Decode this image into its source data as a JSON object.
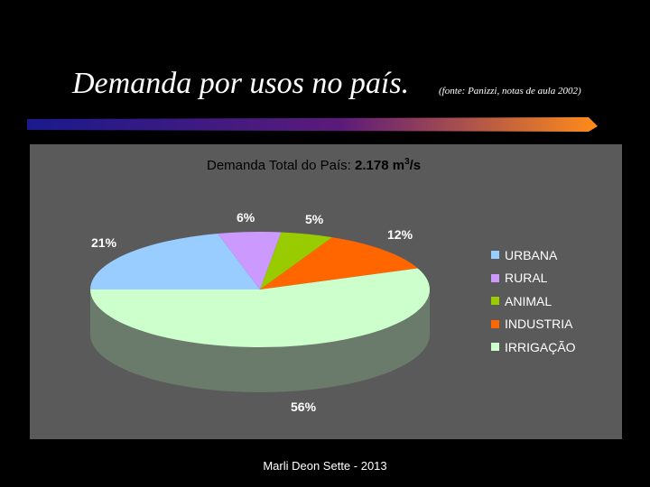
{
  "slide": {
    "title": "Demanda por usos no país.",
    "source_note": "(fonte: Panizzi, notas de aula 2002)",
    "footer": "Marli Deon Sette - 2013",
    "title_bar_colors": [
      "#1a1a8c",
      "#5c1a7a",
      "#ff8c1a"
    ]
  },
  "chart_data": {
    "type": "pie",
    "title": "Demanda Total do País:",
    "title_value": "2.178",
    "title_unit_base": "m",
    "title_unit_sup": "3",
    "title_unit_tail": "/s",
    "legend_placement": "right",
    "slices": [
      {
        "label": "URBANA",
        "value": 21,
        "text": "21%",
        "color": "#99ccff"
      },
      {
        "label": "RURAL",
        "value": 6,
        "text": "6%",
        "color": "#cc99ff"
      },
      {
        "label": "ANIMAL",
        "value": 5,
        "text": "5%",
        "color": "#99cc00"
      },
      {
        "label": "INDUSTRIA",
        "value": 12,
        "text": "12%",
        "color": "#ff6600"
      },
      {
        "label": "IRRIGAÇÃO",
        "value": 56,
        "text": "56%",
        "color": "#ccffcc"
      }
    ],
    "side_color": "#6b7b6b",
    "panel_color": "#5a5a5a"
  }
}
